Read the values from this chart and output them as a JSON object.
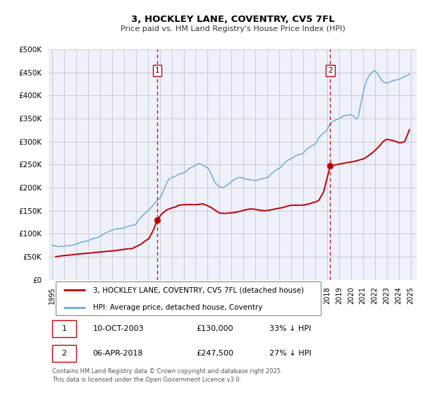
{
  "title": "3, HOCKLEY LANE, COVENTRY, CV5 7FL",
  "subtitle": "Price paid vs. HM Land Registry's House Price Index (HPI)",
  "ylim": [
    0,
    500000
  ],
  "yticks": [
    0,
    50000,
    100000,
    150000,
    200000,
    250000,
    300000,
    350000,
    400000,
    450000,
    500000
  ],
  "xlim_start": 1994.7,
  "xlim_end": 2025.5,
  "xticks": [
    1995,
    1996,
    1997,
    1998,
    1999,
    2000,
    2001,
    2002,
    2003,
    2004,
    2005,
    2006,
    2007,
    2008,
    2009,
    2010,
    2011,
    2012,
    2013,
    2014,
    2015,
    2016,
    2017,
    2018,
    2019,
    2020,
    2021,
    2022,
    2023,
    2024,
    2025
  ],
  "hpi_color": "#6aaed6",
  "price_color": "#c00000",
  "vline_color": "#cc0000",
  "grid_color": "#cccccc",
  "bg_color": "#eef0fa",
  "marker1_x": 2003.78,
  "marker1_y": 130000,
  "marker2_x": 2018.27,
  "marker2_y": 247500,
  "legend_label_price": "3, HOCKLEY LANE, COVENTRY, CV5 7FL (detached house)",
  "legend_label_hpi": "HPI: Average price, detached house, Coventry",
  "table_row1": [
    "1",
    "10-OCT-2003",
    "£130,000",
    "33% ↓ HPI"
  ],
  "table_row2": [
    "2",
    "06-APR-2018",
    "£247,500",
    "27% ↓ HPI"
  ],
  "footer": "Contains HM Land Registry data © Crown copyright and database right 2025.\nThis data is licensed under the Open Government Licence v3.0.",
  "hpi_data": {
    "years": [
      1995.0,
      1995.08,
      1995.17,
      1995.25,
      1995.33,
      1995.42,
      1995.5,
      1995.58,
      1995.67,
      1995.75,
      1995.83,
      1995.92,
      1996.0,
      1996.08,
      1996.17,
      1996.25,
      1996.33,
      1996.42,
      1996.5,
      1996.58,
      1996.67,
      1996.75,
      1996.83,
      1996.92,
      1997.0,
      1997.08,
      1997.17,
      1997.25,
      1997.33,
      1997.42,
      1997.5,
      1997.58,
      1997.67,
      1997.75,
      1997.83,
      1997.92,
      1998.0,
      1998.08,
      1998.17,
      1998.25,
      1998.33,
      1998.42,
      1998.5,
      1998.58,
      1998.67,
      1998.75,
      1998.83,
      1998.92,
      1999.0,
      1999.08,
      1999.17,
      1999.25,
      1999.33,
      1999.42,
      1999.5,
      1999.58,
      1999.67,
      1999.75,
      1999.83,
      1999.92,
      2000.0,
      2000.08,
      2000.17,
      2000.25,
      2000.33,
      2000.42,
      2000.5,
      2000.58,
      2000.67,
      2000.75,
      2000.83,
      2000.92,
      2001.0,
      2001.08,
      2001.17,
      2001.25,
      2001.33,
      2001.42,
      2001.5,
      2001.58,
      2001.67,
      2001.75,
      2001.83,
      2001.92,
      2002.0,
      2002.08,
      2002.17,
      2002.25,
      2002.33,
      2002.42,
      2002.5,
      2002.58,
      2002.67,
      2002.75,
      2002.83,
      2002.92,
      2003.0,
      2003.08,
      2003.17,
      2003.25,
      2003.33,
      2003.42,
      2003.5,
      2003.58,
      2003.67,
      2003.75,
      2003.83,
      2003.92,
      2004.0,
      2004.08,
      2004.17,
      2004.25,
      2004.33,
      2004.42,
      2004.5,
      2004.58,
      2004.67,
      2004.75,
      2004.83,
      2004.92,
      2005.0,
      2005.08,
      2005.17,
      2005.25,
      2005.33,
      2005.42,
      2005.5,
      2005.58,
      2005.67,
      2005.75,
      2005.83,
      2005.92,
      2006.0,
      2006.08,
      2006.17,
      2006.25,
      2006.33,
      2006.42,
      2006.5,
      2006.58,
      2006.67,
      2006.75,
      2006.83,
      2006.92,
      2007.0,
      2007.08,
      2007.17,
      2007.25,
      2007.33,
      2007.42,
      2007.5,
      2007.58,
      2007.67,
      2007.75,
      2007.83,
      2007.92,
      2008.0,
      2008.08,
      2008.17,
      2008.25,
      2008.33,
      2008.42,
      2008.5,
      2008.58,
      2008.67,
      2008.75,
      2008.83,
      2008.92,
      2009.0,
      2009.08,
      2009.17,
      2009.25,
      2009.33,
      2009.42,
      2009.5,
      2009.58,
      2009.67,
      2009.75,
      2009.83,
      2009.92,
      2010.0,
      2010.08,
      2010.17,
      2010.25,
      2010.33,
      2010.42,
      2010.5,
      2010.58,
      2010.67,
      2010.75,
      2010.83,
      2010.92,
      2011.0,
      2011.08,
      2011.17,
      2011.25,
      2011.33,
      2011.42,
      2011.5,
      2011.58,
      2011.67,
      2011.75,
      2011.83,
      2011.92,
      2012.0,
      2012.08,
      2012.17,
      2012.25,
      2012.33,
      2012.42,
      2012.5,
      2012.58,
      2012.67,
      2012.75,
      2012.83,
      2012.92,
      2013.0,
      2013.08,
      2013.17,
      2013.25,
      2013.33,
      2013.42,
      2013.5,
      2013.58,
      2013.67,
      2013.75,
      2013.83,
      2013.92,
      2014.0,
      2014.08,
      2014.17,
      2014.25,
      2014.33,
      2014.42,
      2014.5,
      2014.58,
      2014.67,
      2014.75,
      2014.83,
      2014.92,
      2015.0,
      2015.08,
      2015.17,
      2015.25,
      2015.33,
      2015.42,
      2015.5,
      2015.58,
      2015.67,
      2015.75,
      2015.83,
      2015.92,
      2016.0,
      2016.08,
      2016.17,
      2016.25,
      2016.33,
      2016.42,
      2016.5,
      2016.58,
      2016.67,
      2016.75,
      2016.83,
      2016.92,
      2017.0,
      2017.08,
      2017.17,
      2017.25,
      2017.33,
      2017.42,
      2017.5,
      2017.58,
      2017.67,
      2017.75,
      2017.83,
      2017.92,
      2018.0,
      2018.08,
      2018.17,
      2018.25,
      2018.33,
      2018.42,
      2018.5,
      2018.58,
      2018.67,
      2018.75,
      2018.83,
      2018.92,
      2019.0,
      2019.08,
      2019.17,
      2019.25,
      2019.33,
      2019.42,
      2019.5,
      2019.58,
      2019.67,
      2019.75,
      2019.83,
      2019.92,
      2020.0,
      2020.08,
      2020.17,
      2020.25,
      2020.33,
      2020.42,
      2020.5,
      2020.58,
      2020.67,
      2020.75,
      2020.83,
      2020.92,
      2021.0,
      2021.08,
      2021.17,
      2021.25,
      2021.33,
      2021.42,
      2021.5,
      2021.58,
      2021.67,
      2021.75,
      2021.83,
      2021.92,
      2022.0,
      2022.08,
      2022.17,
      2022.25,
      2022.33,
      2022.42,
      2022.5,
      2022.58,
      2022.67,
      2022.75,
      2022.83,
      2022.92,
      2023.0,
      2023.08,
      2023.17,
      2023.25,
      2023.33,
      2023.42,
      2023.5,
      2023.58,
      2023.67,
      2023.75,
      2023.83,
      2023.92,
      2024.0,
      2024.08,
      2024.17,
      2024.25,
      2024.33,
      2024.42,
      2024.5,
      2024.58,
      2024.67,
      2024.75,
      2024.83,
      2024.92
    ],
    "values": [
      75000,
      74500,
      74000,
      73500,
      73000,
      72500,
      72000,
      72200,
      72400,
      72600,
      72800,
      73000,
      73200,
      73400,
      73600,
      73800,
      74000,
      74300,
      74600,
      74900,
      75200,
      75600,
      76000,
      76500,
      77000,
      78000,
      79000,
      80000,
      81000,
      81500,
      82000,
      82500,
      83000,
      83500,
      84000,
      84500,
      85000,
      86000,
      87000,
      88000,
      89000,
      89500,
      90000,
      90500,
      91000,
      91500,
      92000,
      93000,
      94000,
      95500,
      97000,
      98500,
      100000,
      101000,
      102000,
      103000,
      104000,
      105000,
      106000,
      107000,
      108000,
      108500,
      109000,
      109500,
      110000,
      110500,
      111000,
      111200,
      111400,
      111600,
      111800,
      112000,
      112500,
      113500,
      114500,
      115500,
      116000,
      116500,
      117000,
      117500,
      118000,
      118500,
      119000,
      119500,
      121000,
      124000,
      127000,
      130000,
      133000,
      135500,
      138000,
      140000,
      142000,
      144000,
      146000,
      148000,
      150000,
      152000,
      154000,
      156000,
      158000,
      161000,
      164000,
      166500,
      169000,
      171000,
      173000,
      175000,
      177000,
      180000,
      185000,
      190000,
      195000,
      200000,
      205000,
      210000,
      214000,
      218000,
      220000,
      221000,
      222000,
      222500,
      223000,
      224000,
      225000,
      226500,
      228000,
      229000,
      230000,
      230500,
      231000,
      231500,
      232000,
      233500,
      235000,
      236000,
      238000,
      240000,
      242000,
      243000,
      244000,
      245000,
      246500,
      248000,
      249000,
      250000,
      251000,
      252000,
      252000,
      251000,
      250000,
      249000,
      248000,
      247000,
      246000,
      244500,
      243000,
      240000,
      236000,
      232000,
      228000,
      223000,
      218000,
      213000,
      210000,
      208000,
      206000,
      204000,
      202000,
      201000,
      200500,
      200000,
      200500,
      202000,
      203500,
      205000,
      206500,
      208000,
      209500,
      211000,
      213000,
      215000,
      216500,
      218000,
      219000,
      220000,
      221000,
      222000,
      222500,
      222000,
      221500,
      221000,
      220000,
      219500,
      219000,
      218500,
      218000,
      218000,
      217500,
      217000,
      217000,
      216500,
      216000,
      215500,
      215000,
      215500,
      216000,
      217000,
      218000,
      218500,
      219000,
      219500,
      220000,
      220500,
      221000,
      221500,
      222000,
      223000,
      225000,
      227500,
      230000,
      232000,
      234000,
      235500,
      237000,
      238500,
      240000,
      241000,
      242000,
      244000,
      246000,
      248500,
      251000,
      253000,
      255000,
      257000,
      258500,
      260000,
      261000,
      262000,
      263000,
      264000,
      265500,
      267000,
      268500,
      269500,
      270500,
      271000,
      271500,
      272000,
      272500,
      273000,
      275000,
      277000,
      279500,
      282000,
      284000,
      285500,
      287000,
      288500,
      290000,
      291000,
      292000,
      293000,
      295000,
      298000,
      301000,
      305000,
      309000,
      311500,
      313000,
      315500,
      318000,
      320000,
      321000,
      323000,
      326000,
      330000,
      334000,
      338000,
      340000,
      342000,
      344000,
      345000,
      346000,
      347000,
      348000,
      348500,
      350000,
      351000,
      352500,
      354000,
      355000,
      355500,
      356000,
      356500,
      357000,
      357500,
      358000,
      358000,
      358000,
      357000,
      355500,
      354000,
      352000,
      350000,
      349000,
      352000,
      360000,
      372000,
      382000,
      393000,
      403000,
      412000,
      420000,
      428000,
      434000,
      438000,
      442000,
      445000,
      448000,
      450000,
      452000,
      453000,
      454000,
      452000,
      449000,
      446000,
      443000,
      440000,
      436000,
      432000,
      430000,
      429000,
      428000,
      427000,
      427000,
      427500,
      428000,
      429000,
      430000,
      431000,
      432000,
      432500,
      433000,
      433500,
      434000,
      434500,
      435000,
      436000,
      437000,
      438000,
      439000,
      440000,
      441000,
      442000,
      443000,
      444000,
      445500,
      447000
    ]
  },
  "price_data": {
    "years": [
      1995.3,
      1995.7,
      1996.5,
      1997.2,
      1997.6,
      1998.1,
      1998.8,
      1999.2,
      1999.6,
      2000.1,
      2000.4,
      2000.8,
      2001.2,
      2001.7,
      2002.0,
      2002.4,
      2002.7,
      2003.1,
      2003.5,
      2003.78,
      2004.2,
      2004.6,
      2005.0,
      2005.3,
      2005.6,
      2005.9,
      2006.3,
      2006.6,
      2007.0,
      2007.3,
      2007.6,
      2007.9,
      2008.3,
      2008.7,
      2009.0,
      2009.4,
      2009.8,
      2010.2,
      2010.6,
      2010.9,
      2011.2,
      2011.6,
      2012.0,
      2012.4,
      2012.8,
      2013.1,
      2013.5,
      2013.9,
      2014.3,
      2014.7,
      2015.0,
      2015.4,
      2015.8,
      2016.1,
      2016.5,
      2016.9,
      2017.3,
      2017.7,
      2018.0,
      2018.27,
      2018.6,
      2019.0,
      2019.4,
      2019.8,
      2020.3,
      2020.7,
      2021.1,
      2021.5,
      2021.9,
      2022.3,
      2022.7,
      2023.0,
      2023.4,
      2023.8,
      2024.1,
      2024.5,
      2024.9
    ],
    "values": [
      50000,
      52000,
      54000,
      56000,
      57000,
      58000,
      60000,
      61000,
      62000,
      63000,
      64000,
      65500,
      67000,
      68000,
      72000,
      77000,
      83000,
      90000,
      110000,
      130000,
      144000,
      152000,
      156000,
      158000,
      162000,
      163000,
      163000,
      163500,
      163000,
      164000,
      165000,
      162000,
      157000,
      150000,
      145000,
      144000,
      145000,
      146000,
      148000,
      150000,
      152000,
      154000,
      153000,
      151000,
      150000,
      151000,
      153000,
      155000,
      157000,
      160000,
      162000,
      162000,
      162000,
      162500,
      165000,
      168000,
      172000,
      190000,
      220000,
      247500,
      249000,
      251000,
      253000,
      255000,
      257000,
      260000,
      263000,
      270000,
      278000,
      288000,
      300000,
      305000,
      303000,
      300000,
      297000,
      300000,
      326000
    ]
  }
}
